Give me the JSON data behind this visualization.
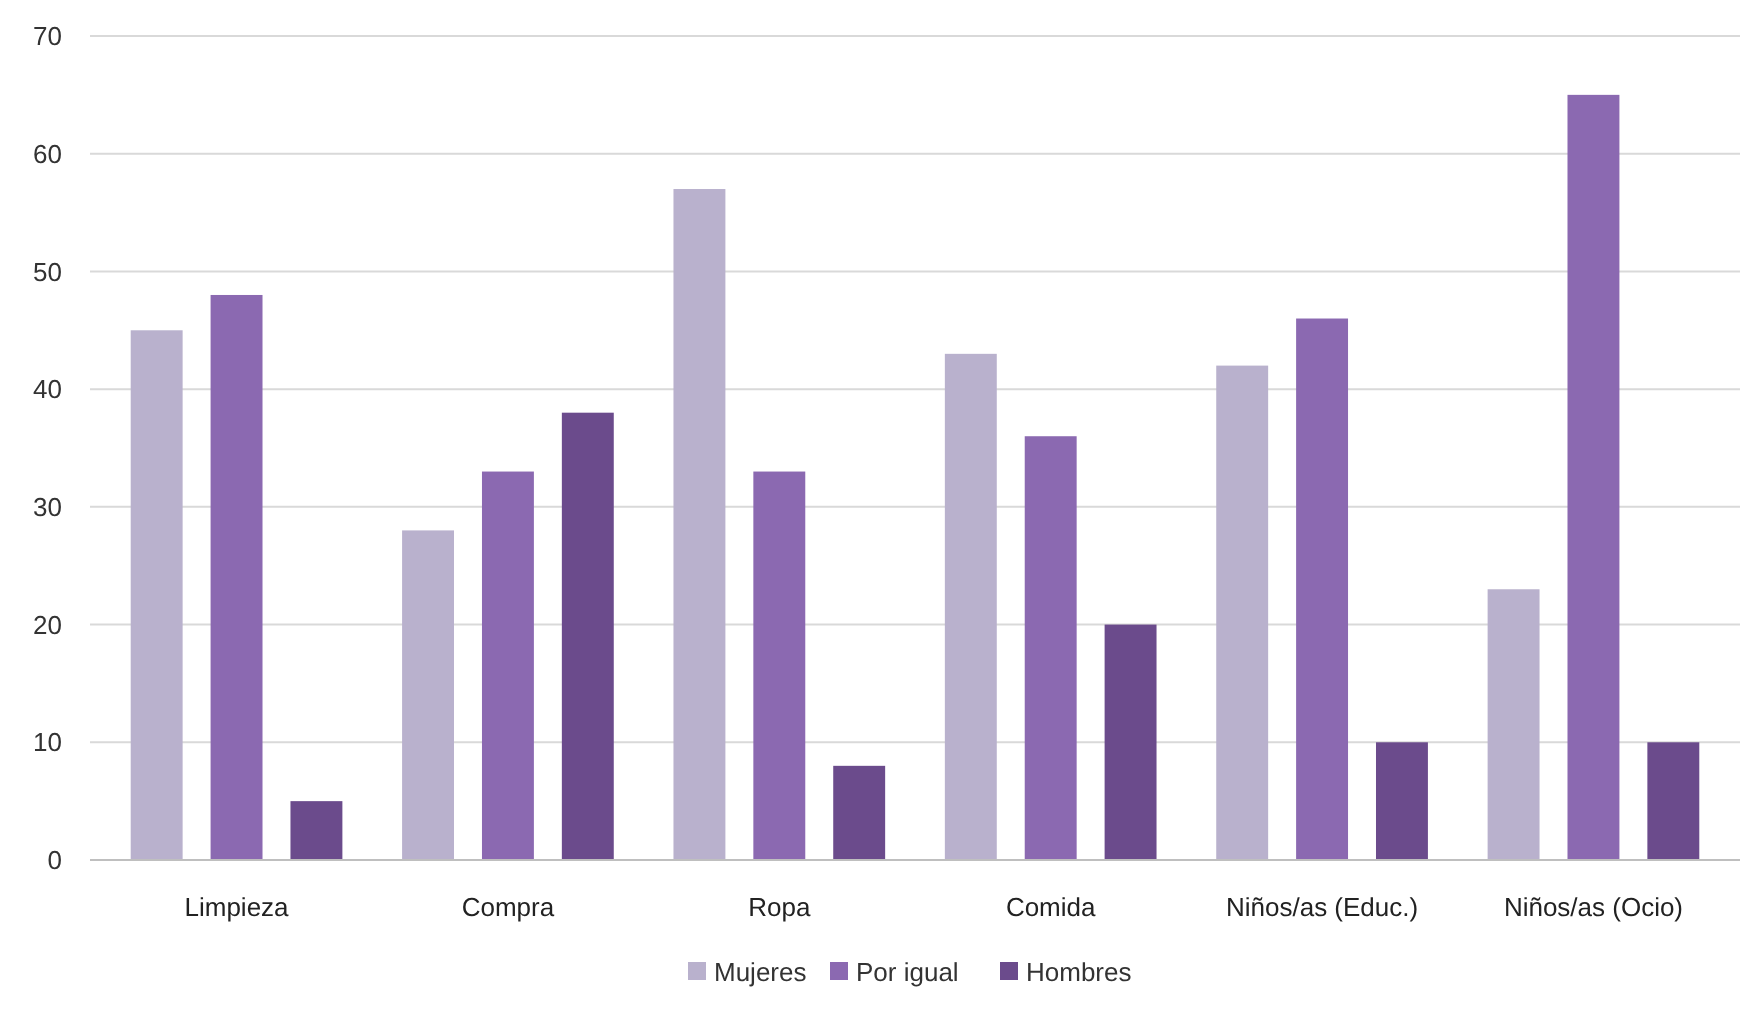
{
  "chart_data": {
    "type": "bar",
    "categories": [
      "Limpieza",
      "Compra",
      "Ropa",
      "Comida",
      "Niños/as (Educ.)",
      "Niños/as (Ocio)"
    ],
    "series": [
      {
        "name": "Mujeres",
        "color": "#b9b1cd",
        "values": [
          45,
          28,
          57,
          43,
          42,
          23
        ]
      },
      {
        "name": "Por igual",
        "color": "#8b69b1",
        "values": [
          48,
          33,
          33,
          36,
          46,
          65
        ]
      },
      {
        "name": "Hombres",
        "color": "#6b4b8c",
        "values": [
          5,
          38,
          8,
          20,
          10,
          10
        ]
      }
    ],
    "ylim": [
      0,
      70
    ],
    "yticks": [
      0,
      10,
      20,
      30,
      40,
      50,
      60,
      70
    ],
    "grid": "y",
    "legend": "bottom"
  }
}
